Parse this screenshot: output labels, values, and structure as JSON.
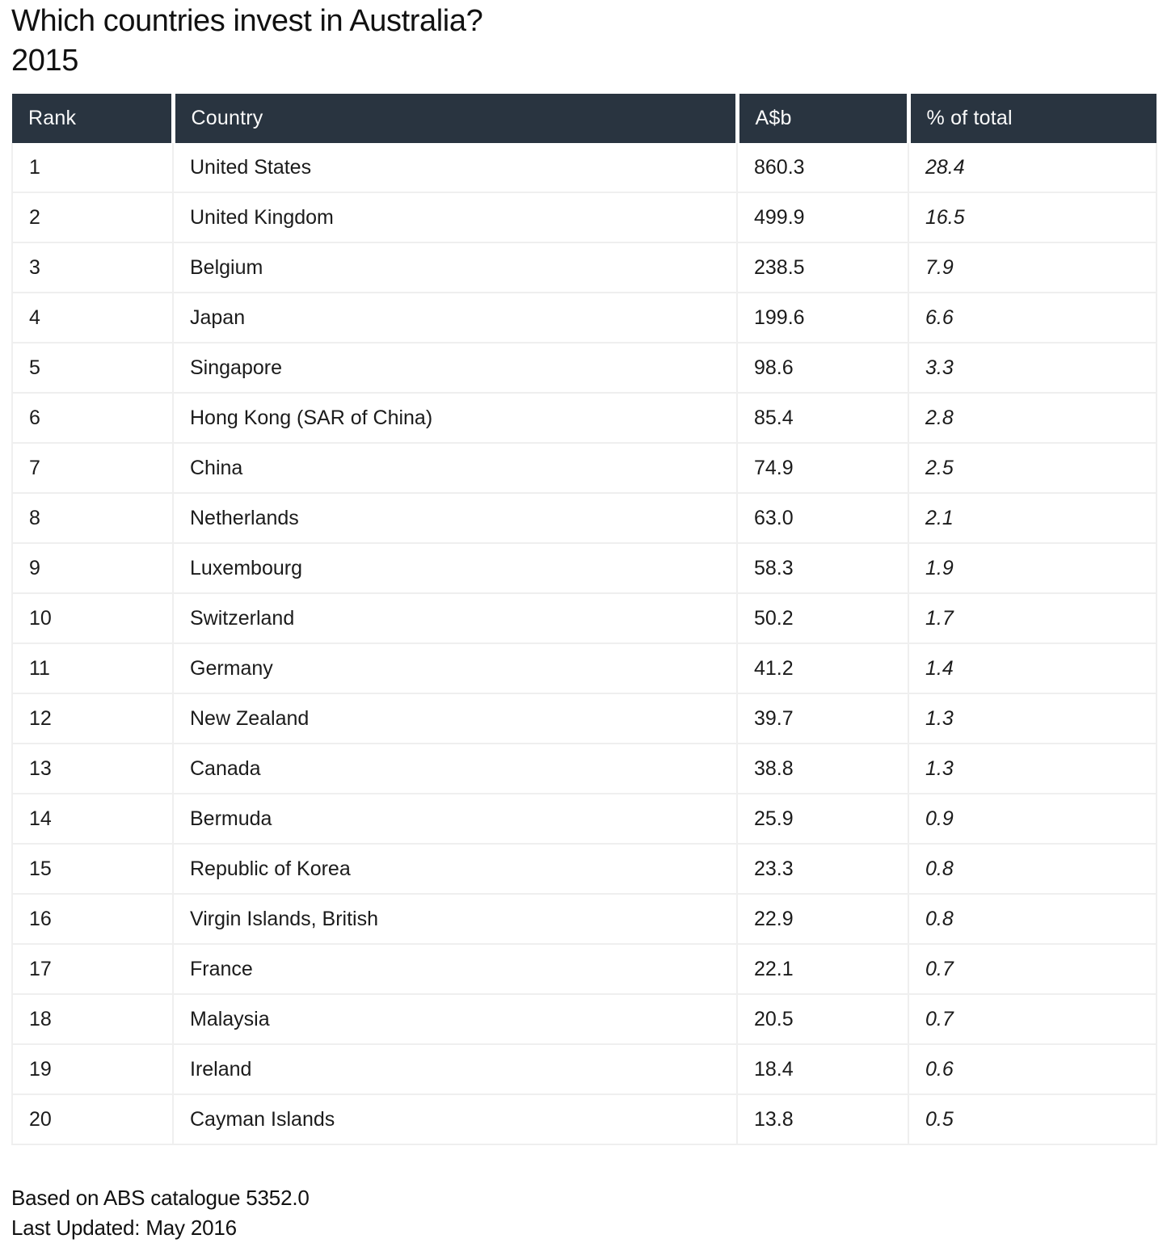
{
  "colors": {
    "header_bg": "#293440",
    "header_text": "#fafafa",
    "grid_line": "#efefef",
    "body_text": "#1b1b1b"
  },
  "chart_data": {
    "type": "table",
    "title": "Which countries invest in Australia?",
    "subtitle": "2015",
    "columns": [
      "Rank",
      "Country",
      "A$b",
      "% of total"
    ],
    "rows": [
      [
        "1",
        "United States",
        "860.3",
        "28.4"
      ],
      [
        "2",
        "United Kingdom",
        "499.9",
        "16.5"
      ],
      [
        "3",
        "Belgium",
        "238.5",
        "7.9"
      ],
      [
        "4",
        "Japan",
        "199.6",
        "6.6"
      ],
      [
        "5",
        "Singapore",
        "98.6",
        "3.3"
      ],
      [
        "6",
        "Hong Kong (SAR of China)",
        "85.4",
        "2.8"
      ],
      [
        "7",
        "China",
        "74.9",
        "2.5"
      ],
      [
        "8",
        "Netherlands",
        "63.0",
        "2.1"
      ],
      [
        "9",
        "Luxembourg",
        "58.3",
        "1.9"
      ],
      [
        "10",
        "Switzerland",
        "50.2",
        "1.7"
      ],
      [
        "11",
        "Germany",
        "41.2",
        "1.4"
      ],
      [
        "12",
        "New Zealand",
        "39.7",
        "1.3"
      ],
      [
        "13",
        "Canada",
        "38.8",
        "1.3"
      ],
      [
        "14",
        "Bermuda",
        "25.9",
        "0.9"
      ],
      [
        "15",
        "Republic of Korea",
        "23.3",
        "0.8"
      ],
      [
        "16",
        "Virgin Islands, British",
        "22.9",
        "0.8"
      ],
      [
        "17",
        "France",
        "22.1",
        "0.7"
      ],
      [
        "18",
        "Malaysia",
        "20.5",
        "0.7"
      ],
      [
        "19",
        "Ireland",
        "18.4",
        "0.6"
      ],
      [
        "20",
        "Cayman Islands",
        "13.8",
        "0.5"
      ]
    ],
    "source": "Based on ABS catalogue 5352.0",
    "last_updated": "Last Updated: May 2016",
    "layout_hints": {
      "grid": "light-gray full grid in body, dark header with white column separators",
      "percent_column_style": "italic"
    }
  }
}
